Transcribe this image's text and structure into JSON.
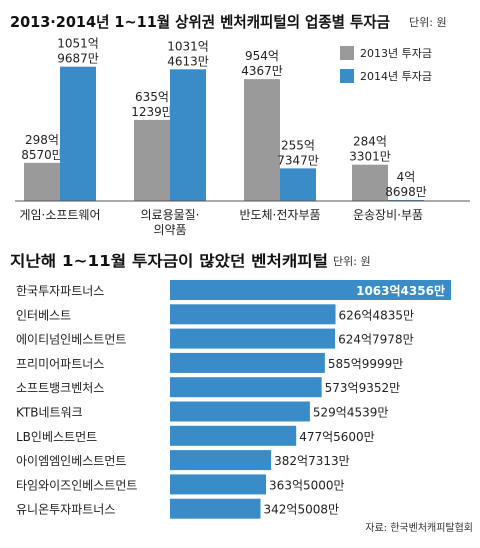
{
  "chart_data": [
    {
      "type": "bar",
      "title": "2013·2014년 1~11월 상위권 벤처캐피털의 업종별 투자금",
      "unit": "단위: 원",
      "legend_position": "top-right",
      "categories": [
        {
          "lines": [
            "게임·소프트웨어"
          ]
        },
        {
          "lines": [
            "의료용물질·",
            "의약품"
          ]
        },
        {
          "lines": [
            "반도체·전자부품"
          ]
        },
        {
          "lines": [
            "운송장비·부품"
          ]
        }
      ],
      "series": [
        {
          "name": "2013년 투자금",
          "color": "#9a9a9a",
          "values": [
            298.857,
            635.1239,
            954.4367,
            284.3301
          ],
          "labels": [
            [
              "298억",
              "8570만"
            ],
            [
              "635억",
              "1239만"
            ],
            [
              "954억",
              "4367만"
            ],
            [
              "284억",
              "3301만"
            ]
          ]
        },
        {
          "name": "2014년 투자금",
          "color": "#3a8cc9",
          "values": [
            1051.9687,
            1031.4613,
            255.7347,
            4.8698
          ],
          "labels": [
            [
              "1051억",
              "9687만"
            ],
            [
              "1031억",
              "4613만"
            ],
            [
              "255억",
              "7347만"
            ],
            [
              "4억",
              "8698만"
            ]
          ]
        }
      ],
      "y_unit": "억 원",
      "ylim": [
        0,
        1300
      ]
    },
    {
      "type": "bar",
      "orientation": "horizontal",
      "title": "지난해 1~11월 투자금이 많았던 벤처캐피털",
      "unit": "단위: 원",
      "color": "#3a8cc9",
      "categories": [
        "한국투자파트너스",
        "인터베스트",
        "에이티넘인베스트먼트",
        "프리미어파트너스",
        "소프트뱅크벤처스",
        "KTB네트워크",
        "LB인베스트먼트",
        "아이엠엠인베스트먼트",
        "타임와이즈인베스트먼트",
        "유니온투자파트너스"
      ],
      "values": [
        1063.4356,
        626.4835,
        624.7978,
        585.9999,
        573.9352,
        529.4539,
        477.56,
        382.7313,
        363.5,
        342.5008
      ],
      "value_labels": [
        "1063억4356만",
        "626억4835만",
        "624억7978만",
        "585억9999만",
        "573억9352만",
        "529억4539만",
        "477억5600만",
        "382억7313만",
        "363억5000만",
        "342억5008만"
      ],
      "x_unit": "억 원",
      "xlim": [
        0,
        1063.4356
      ],
      "source": "자료: 한국벤처캐피탈협회"
    }
  ]
}
